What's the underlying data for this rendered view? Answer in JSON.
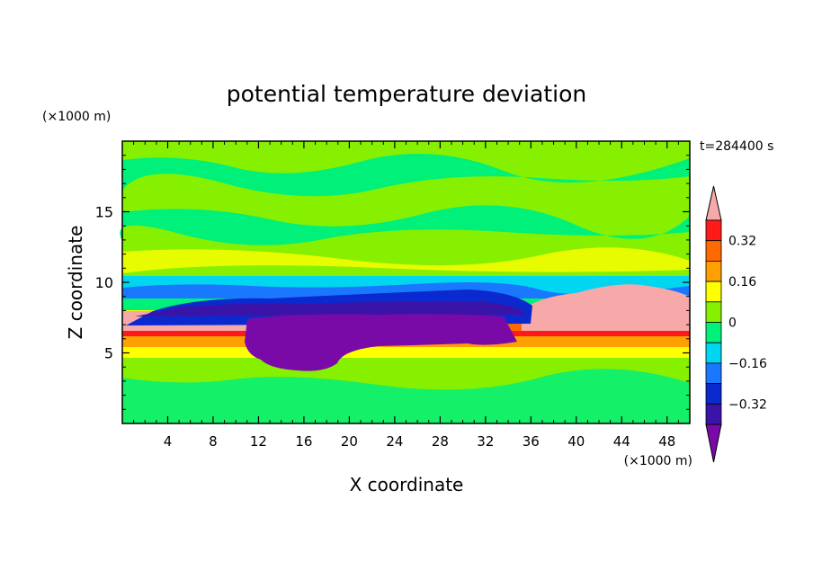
{
  "chart_data": {
    "type": "heatmap",
    "title": "potential temperature deviation",
    "xlabel": "X coordinate",
    "ylabel": "Z coordinate",
    "x_unit": "(×1000 m)",
    "y_unit": "(×1000 m)",
    "time_label": "t=284400 s",
    "xlim": [
      0,
      50
    ],
    "ylim": [
      0,
      20
    ],
    "x_ticks": [
      4,
      8,
      12,
      16,
      20,
      24,
      28,
      32,
      36,
      40,
      44,
      48
    ],
    "y_ticks": [
      5,
      10,
      15
    ],
    "colorbar": {
      "levels": [
        -0.4,
        -0.32,
        -0.24,
        -0.16,
        -0.08,
        0,
        0.08,
        0.16,
        0.24,
        0.32,
        0.4
      ],
      "tick_labels": [
        "0.32",
        "0.16",
        "0",
        "−0.16",
        "−0.32"
      ],
      "tick_values": [
        0.32,
        0.16,
        0,
        -0.16,
        -0.32
      ],
      "colors_low_to_high": [
        "#7a0aa8",
        "#3a14a8",
        "#0a2ad0",
        "#1a78ff",
        "#00d6f0",
        "#00f07a",
        "#86f000",
        "#ffff00",
        "#ffa000",
        "#ff6a00",
        "#ff1a1a",
        "#f7a8a8"
      ],
      "extend": "both"
    },
    "field_description": [
      {
        "z_range": [
          0,
          4
        ],
        "x_range": [
          0,
          50
        ],
        "value": 0.02
      },
      {
        "z_range": [
          4,
          5
        ],
        "x_range": [
          0,
          50
        ],
        "value": 0.1
      },
      {
        "z_range": [
          5,
          8
        ],
        "x_range": [
          0,
          11
        ],
        "value": 0.3
      },
      {
        "z_range": [
          5,
          8
        ],
        "x_range": [
          35,
          50
        ],
        "value": 0.3
      },
      {
        "z_range": [
          8,
          10
        ],
        "x_range": [
          38,
          50
        ],
        "value": 0.42
      },
      {
        "z_range": [
          3.5,
          8
        ],
        "x_range": [
          11,
          35
        ],
        "value": -0.42
      },
      {
        "z_range": [
          8,
          9
        ],
        "x_range": [
          5,
          36
        ],
        "value": -0.35
      },
      {
        "z_range": [
          9,
          10.5
        ],
        "x_range": [
          0,
          50
        ],
        "value": -0.15
      },
      {
        "z_range": [
          10.5,
          20
        ],
        "x_range": [
          0,
          50
        ],
        "value": 0.08
      }
    ]
  }
}
